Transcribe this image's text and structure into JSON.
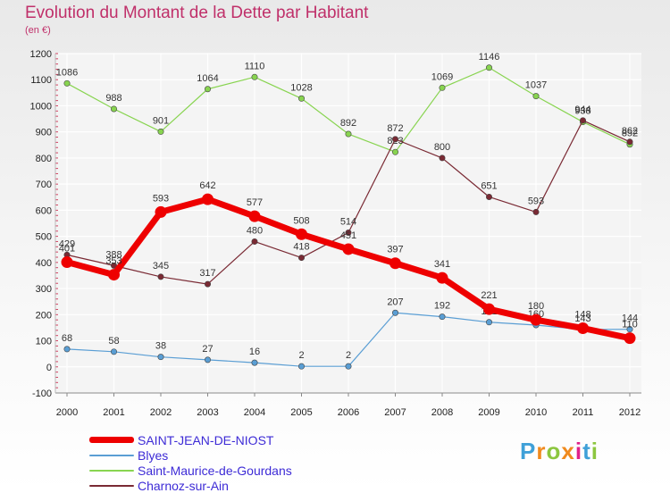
{
  "chart_data": {
    "type": "line",
    "title": "Evolution du Montant de la Dette par Habitant",
    "subtitle": "(en €)",
    "x": [
      "2000",
      "2001",
      "2002",
      "2003",
      "2004",
      "2005",
      "2006",
      "2007",
      "2008",
      "2009",
      "2010",
      "2011",
      "2012"
    ],
    "y_ticks": [
      -100,
      0,
      100,
      200,
      300,
      400,
      500,
      600,
      700,
      800,
      900,
      1000,
      1100,
      1200
    ],
    "ylim": [
      -100,
      1200
    ],
    "grid": true,
    "legend_position": "bottom",
    "series": [
      {
        "name": "Blyes",
        "color": "#5a9ed4",
        "values": [
          68,
          58,
          38,
          27,
          16,
          2,
          2,
          207,
          192,
          171,
          160,
          143,
          144
        ]
      },
      {
        "name": "Saint-Maurice-de-Gourdans",
        "color": "#88d450",
        "values": [
          1086,
          988,
          901,
          1064,
          1110,
          1028,
          892,
          823,
          1069,
          1146,
          1037,
          938,
          852
        ]
      },
      {
        "name": "Charnoz-sur-Ain",
        "color": "#7a2a34",
        "values": [
          429,
          388,
          345,
          317,
          480,
          418,
          514,
          872,
          800,
          651,
          593,
          944,
          862
        ]
      },
      {
        "name": "SAINT-JEAN-DE-NIOST",
        "color": "#ee0000",
        "values": [
          401,
          353,
          593,
          642,
          577,
          508,
          451,
          397,
          341,
          221,
          180,
          148,
          110
        ]
      }
    ],
    "legend_order": [
      3,
      0,
      1,
      2
    ]
  },
  "brand": {
    "letters": [
      "P",
      "r",
      "o",
      "x",
      "i",
      "t",
      "i"
    ],
    "colors": [
      "#3fa0d8",
      "#f08a1e",
      "#8cc63f",
      "#f08a1e",
      "#e0218a",
      "#3fa0d8",
      "#8cc63f"
    ]
  }
}
